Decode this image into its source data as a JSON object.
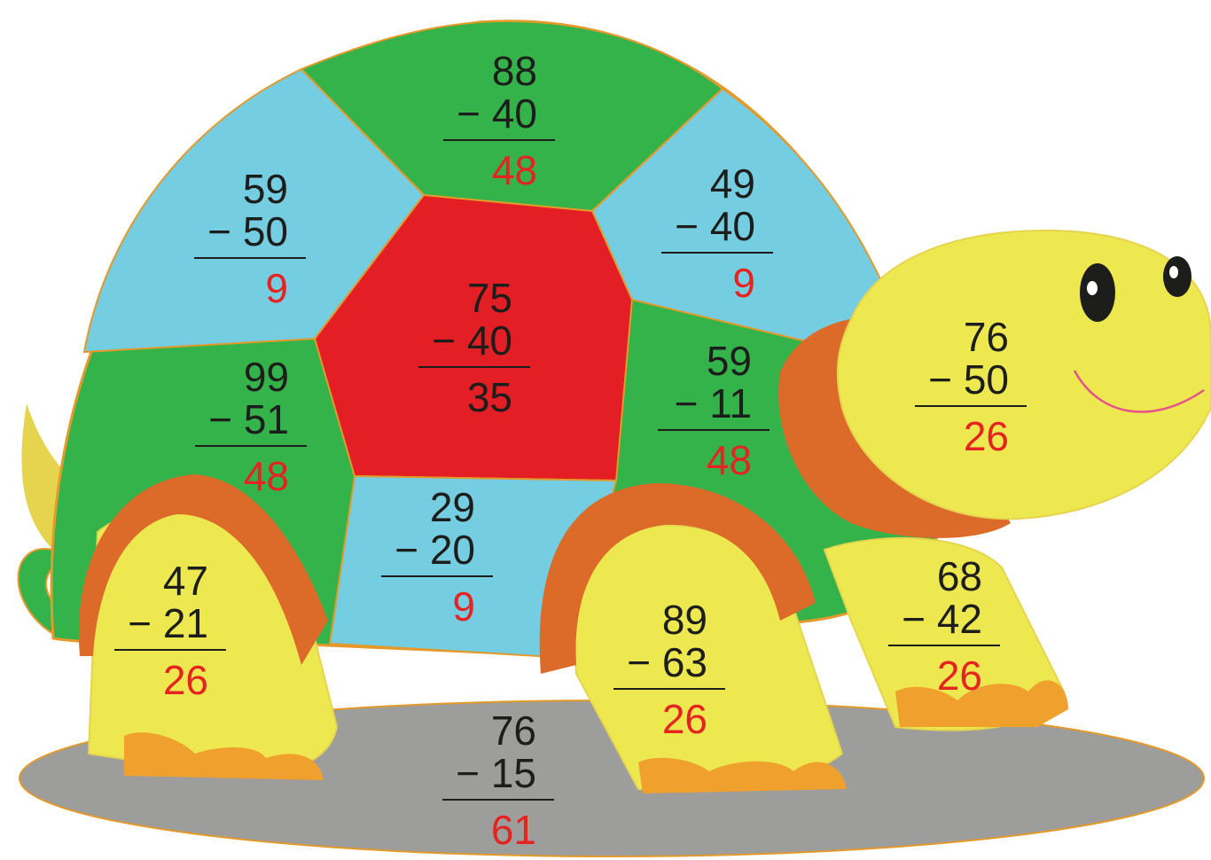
{
  "problems": [
    {
      "top": "88",
      "bottom": "− 40",
      "answer": "48",
      "answer_color": "#e52421"
    },
    {
      "top": "59",
      "bottom": "− 50",
      "answer": "9",
      "answer_color": "#e52421"
    },
    {
      "top": "49",
      "bottom": "− 40",
      "answer": "9",
      "answer_color": "#e52421"
    },
    {
      "top": "75",
      "bottom": "− 40",
      "answer": "35",
      "answer_color": "#1d1d1b"
    },
    {
      "top": "99",
      "bottom": "− 51",
      "answer": "48",
      "answer_color": "#e52421"
    },
    {
      "top": "59",
      "bottom": "− 11",
      "answer": "48",
      "answer_color": "#e52421"
    },
    {
      "top": "76",
      "bottom": "− 50",
      "answer": "26",
      "answer_color": "#e52421"
    },
    {
      "top": "29",
      "bottom": "− 20",
      "answer": "9",
      "answer_color": "#e52421"
    },
    {
      "top": "47",
      "bottom": "− 21",
      "answer": "26",
      "answer_color": "#e52421"
    },
    {
      "top": "89",
      "bottom": "− 63",
      "answer": "26",
      "answer_color": "#e52421"
    },
    {
      "top": "68",
      "bottom": "− 42",
      "answer": "26",
      "answer_color": "#e52421"
    },
    {
      "top": "76",
      "bottom": "− 15",
      "answer": "61",
      "answer_color": "#e52421"
    }
  ]
}
